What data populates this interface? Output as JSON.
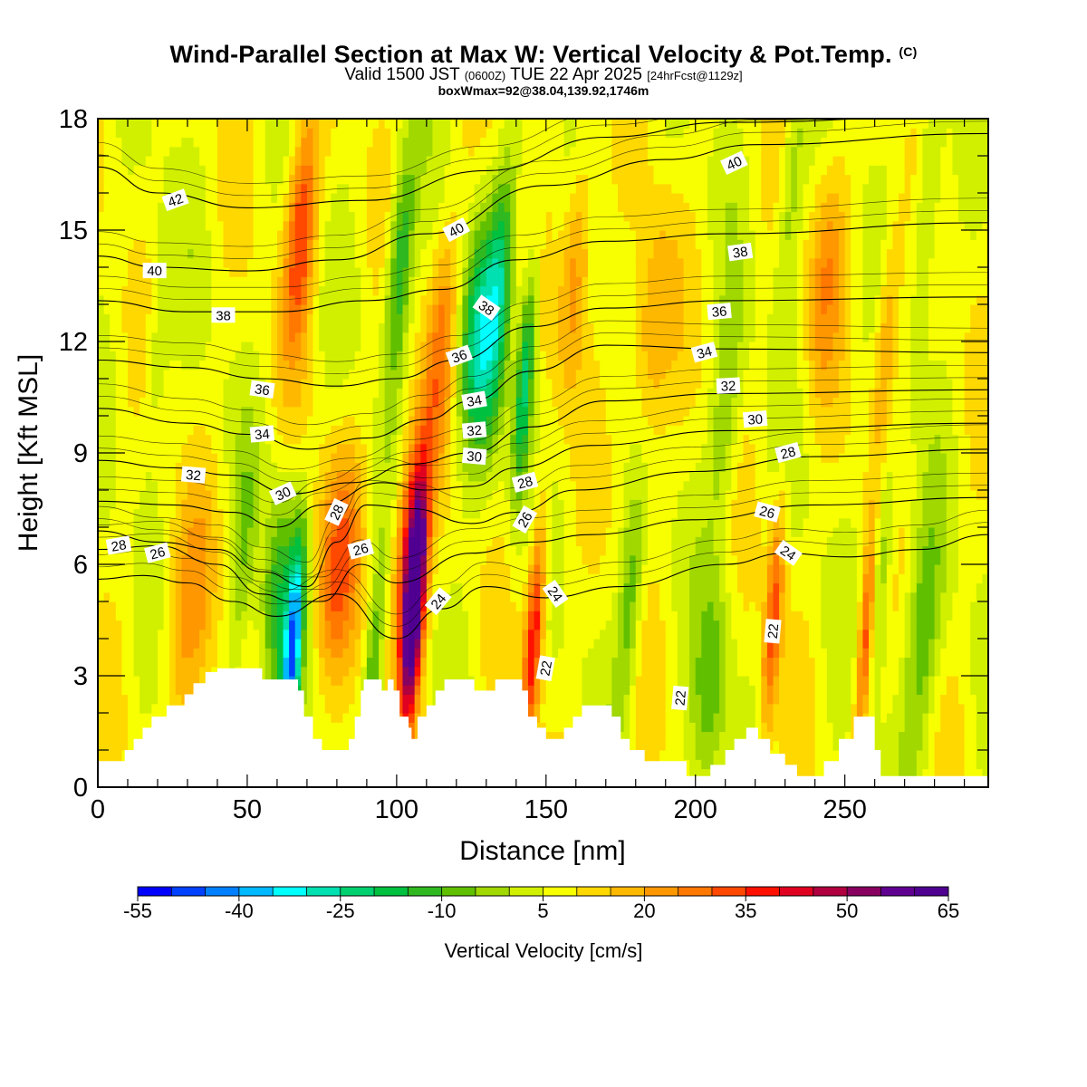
{
  "title": {
    "main": "Wind-Parallel Section at Max W: Vertical Velocity & Pot.Temp.",
    "unit_mark": "(C)",
    "valid_prefix": "Valid 1500 JST",
    "valid_utc": "(0600Z)",
    "valid_suffix": "TUE 22 Apr 2025",
    "forecast": "[24hrFcst@1129z]",
    "box_info": "boxWmax=92@38.04,139.92,1746m"
  },
  "chart_data": {
    "type": "heatmap",
    "xlabel": "Distance [nm]",
    "ylabel": "Height [Kft MSL]",
    "xlim": [
      0,
      298
    ],
    "ylim": [
      0,
      18
    ],
    "x_ticks": [
      0,
      50,
      100,
      150,
      200,
      250
    ],
    "y_ticks": [
      0,
      3,
      6,
      9,
      12,
      15,
      18
    ],
    "colorbar": {
      "title": "Vertical Velocity [cm/s]",
      "min": -55,
      "max": 65,
      "step": 5,
      "tick_labels": [
        "-55",
        "-40",
        "-25",
        "-10",
        "5",
        "20",
        "35",
        "50",
        "65"
      ],
      "colors": [
        "#0000ff",
        "#0040ff",
        "#0080ff",
        "#00b8ff",
        "#00ffff",
        "#00e0b0",
        "#00d070",
        "#00c040",
        "#30b820",
        "#60c000",
        "#a0d800",
        "#d0f000",
        "#f8ff00",
        "#ffd800",
        "#ffb800",
        "#ff9800",
        "#ff7800",
        "#ff4800",
        "#ff1000",
        "#e00020",
        "#b00040",
        "#880060",
        "#600090",
        "#500090"
      ]
    },
    "w_field": {
      "background_w": 7,
      "features": [
        {
          "x": 106,
          "w": 60,
          "z_peak": 5,
          "width_nm": 3.5
        },
        {
          "x": 104,
          "w": 30,
          "z_peak": 6.5,
          "width_nm": 5
        },
        {
          "x": 146,
          "w": 35,
          "z_peak": 4.2,
          "width_nm": 3
        },
        {
          "x": 257,
          "w": 30,
          "z_peak": 4,
          "width_nm": 2.5
        },
        {
          "x": 226,
          "w": 25,
          "z_peak": 4.5,
          "width_nm": 3
        },
        {
          "x": 80,
          "w": 22,
          "z_peak": 6,
          "width_nm": 7
        },
        {
          "x": 68,
          "w": 28,
          "z_peak": 15,
          "width_nm": 5
        },
        {
          "x": 30,
          "w": 14,
          "z_peak": 4.5,
          "width_nm": 8
        },
        {
          "x": 115,
          "w": 18,
          "z_peak": 12,
          "width_nm": 5
        },
        {
          "x": 160,
          "w": 18,
          "z_peak": 14,
          "width_nm": 5
        },
        {
          "x": 185,
          "w": 15,
          "z_peak": 12,
          "width_nm": 7
        },
        {
          "x": 244,
          "w": 15,
          "z_peak": 14,
          "width_nm": 6
        },
        {
          "x": 264,
          "w": 16,
          "z_peak": 12,
          "width_nm": 4
        },
        {
          "x": 65,
          "w": -48,
          "z_peak": 3.5,
          "width_nm": 3
        },
        {
          "x": 60,
          "w": -20,
          "z_peak": 5,
          "width_nm": 5
        },
        {
          "x": 101,
          "w": -25,
          "z_peak": 14,
          "width_nm": 4
        },
        {
          "x": 128,
          "w": -30,
          "z_peak": 12,
          "width_nm": 7
        },
        {
          "x": 143,
          "w": -30,
          "z_peak": 11,
          "width_nm": 3
        },
        {
          "x": 135,
          "w": -18,
          "z_peak": 14,
          "width_nm": 4
        },
        {
          "x": 92,
          "w": -18,
          "z_peak": 3,
          "width_nm": 3
        },
        {
          "x": 178,
          "w": -16,
          "z_peak": 5,
          "width_nm": 4
        },
        {
          "x": 205,
          "w": -14,
          "z_peak": 2.5,
          "width_nm": 6
        },
        {
          "x": 210,
          "w": -12,
          "z_peak": 10,
          "width_nm": 5
        },
        {
          "x": 262,
          "w": -16,
          "z_peak": 6,
          "width_nm": 4
        },
        {
          "x": 276,
          "w": -16,
          "z_peak": 4,
          "width_nm": 6
        },
        {
          "x": 278,
          "w": -14,
          "z_peak": 16,
          "width_nm": 4
        },
        {
          "x": 232,
          "w": -12,
          "z_peak": 16,
          "width_nm": 4
        },
        {
          "x": 20,
          "w": -8,
          "z_peak": 12,
          "width_nm": 4
        },
        {
          "x": 48,
          "w": -10,
          "z_peak": 6,
          "width_nm": 4
        }
      ]
    },
    "terrain_kft": [
      [
        0,
        0.7
      ],
      [
        6,
        0.7
      ],
      [
        9,
        1.0
      ],
      [
        12,
        1.3
      ],
      [
        15,
        1.6
      ],
      [
        18,
        1.9
      ],
      [
        23,
        2.2
      ],
      [
        29,
        2.5
      ],
      [
        32,
        2.8
      ],
      [
        36,
        3.1
      ],
      [
        40,
        3.2
      ],
      [
        52,
        3.2
      ],
      [
        55,
        2.9
      ],
      [
        65,
        2.9
      ],
      [
        67,
        2.6
      ],
      [
        69,
        1.9
      ],
      [
        72,
        1.3
      ],
      [
        75,
        1.0
      ],
      [
        81,
        1.0
      ],
      [
        84,
        1.3
      ],
      [
        86,
        1.9
      ],
      [
        88,
        2.6
      ],
      [
        89,
        2.9
      ],
      [
        94,
        2.9
      ],
      [
        95,
        2.6
      ],
      [
        97,
        2.9
      ],
      [
        99,
        2.6
      ],
      [
        101,
        1.9
      ],
      [
        104,
        1.6
      ],
      [
        105,
        1.3
      ],
      [
        107,
        1.9
      ],
      [
        110,
        2.2
      ],
      [
        113,
        2.6
      ],
      [
        116,
        2.9
      ],
      [
        124,
        2.9
      ],
      [
        126,
        2.6
      ],
      [
        131,
        2.6
      ],
      [
        133,
        2.9
      ],
      [
        140,
        2.9
      ],
      [
        142,
        2.6
      ],
      [
        144,
        1.9
      ],
      [
        147,
        1.6
      ],
      [
        150,
        1.3
      ],
      [
        153,
        1.3
      ],
      [
        156,
        1.6
      ],
      [
        159,
        1.9
      ],
      [
        162,
        2.2
      ],
      [
        170,
        2.2
      ],
      [
        172,
        1.9
      ],
      [
        175,
        1.3
      ],
      [
        178,
        1.0
      ],
      [
        183,
        0.7
      ],
      [
        195,
        0.7
      ],
      [
        197,
        0.3
      ],
      [
        202,
        0.3
      ],
      [
        205,
        0.6
      ],
      [
        210,
        1.0
      ],
      [
        213,
        1.3
      ],
      [
        217,
        1.6
      ],
      [
        221,
        1.3
      ],
      [
        225,
        0.9
      ],
      [
        230,
        0.6
      ],
      [
        234,
        0.3
      ],
      [
        240,
        0.3
      ],
      [
        243,
        0.7
      ],
      [
        248,
        1.3
      ],
      [
        253,
        1.9
      ],
      [
        257,
        1.9
      ],
      [
        260,
        1.0
      ],
      [
        262,
        0.3
      ],
      [
        270,
        0.3
      ],
      [
        298,
        0.3
      ]
    ],
    "contours": [
      {
        "label": "42",
        "pts": [
          [
            0,
            16.7
          ],
          [
            20,
            16.0
          ],
          [
            50,
            15.6
          ],
          [
            90,
            15.8
          ],
          [
            130,
            16.6
          ],
          [
            170,
            17.5
          ],
          [
            210,
            17.9
          ],
          [
            298,
            18.1
          ]
        ]
      },
      {
        "label": "40",
        "pts": [
          [
            0,
            14.3
          ],
          [
            20,
            14.0
          ],
          [
            50,
            13.9
          ],
          [
            80,
            14.2
          ],
          [
            110,
            14.9
          ],
          [
            150,
            16.2
          ],
          [
            190,
            16.9
          ],
          [
            220,
            17.3
          ],
          [
            298,
            17.6
          ]
        ]
      },
      {
        "label": "38",
        "pts": [
          [
            0,
            13.1
          ],
          [
            30,
            12.8
          ],
          [
            60,
            12.8
          ],
          [
            90,
            13.1
          ],
          [
            115,
            13.4
          ],
          [
            140,
            14.2
          ],
          [
            170,
            14.7
          ],
          [
            210,
            14.9
          ],
          [
            298,
            15.2
          ]
        ]
      },
      {
        "label": "36",
        "pts": [
          [
            0,
            11.5
          ],
          [
            30,
            11.3
          ],
          [
            55,
            11.0
          ],
          [
            80,
            10.8
          ],
          [
            100,
            11.0
          ],
          [
            120,
            11.5
          ],
          [
            145,
            12.4
          ],
          [
            170,
            12.9
          ],
          [
            210,
            13.1
          ],
          [
            298,
            13.2
          ]
        ]
      },
      {
        "label": "34",
        "pts": [
          [
            0,
            10.2
          ],
          [
            30,
            9.8
          ],
          [
            50,
            9.5
          ],
          [
            70,
            9.1
          ],
          [
            90,
            9.4
          ],
          [
            110,
            9.9
          ],
          [
            125,
            10.4
          ],
          [
            145,
            11.2
          ],
          [
            170,
            11.9
          ],
          [
            210,
            11.8
          ],
          [
            298,
            11.7
          ]
        ]
      },
      {
        "label": "32",
        "pts": [
          [
            0,
            8.8
          ],
          [
            25,
            8.6
          ],
          [
            45,
            8.4
          ],
          [
            65,
            7.9
          ],
          [
            85,
            8.2
          ],
          [
            105,
            8.7
          ],
          [
            125,
            9.0
          ],
          [
            145,
            9.7
          ],
          [
            170,
            10.4
          ],
          [
            210,
            10.6
          ],
          [
            298,
            10.7
          ]
        ]
      },
      {
        "label": "30",
        "pts": [
          [
            0,
            7.7
          ],
          [
            25,
            7.6
          ],
          [
            45,
            7.4
          ],
          [
            60,
            7.0
          ],
          [
            75,
            7.6
          ],
          [
            95,
            8.2
          ],
          [
            110,
            8.0
          ],
          [
            125,
            8.1
          ],
          [
            140,
            8.6
          ],
          [
            165,
            9.2
          ],
          [
            210,
            9.6
          ],
          [
            298,
            9.8
          ]
        ]
      },
      {
        "label": "28",
        "pts": [
          [
            0,
            6.9
          ],
          [
            20,
            6.6
          ],
          [
            40,
            6.4
          ],
          [
            55,
            5.8
          ],
          [
            70,
            5.4
          ],
          [
            80,
            6.6
          ],
          [
            90,
            7.6
          ],
          [
            105,
            7.5
          ],
          [
            125,
            7.1
          ],
          [
            140,
            7.4
          ],
          [
            160,
            8.0
          ],
          [
            200,
            8.5
          ],
          [
            240,
            8.9
          ],
          [
            298,
            9.1
          ]
        ]
      },
      {
        "label": "26",
        "pts": [
          [
            0,
            6.4
          ],
          [
            20,
            6.5
          ],
          [
            40,
            6.0
          ],
          [
            55,
            5.2
          ],
          [
            65,
            5.0
          ],
          [
            75,
            5.0
          ],
          [
            88,
            6.0
          ],
          [
            100,
            5.5
          ],
          [
            125,
            6.3
          ],
          [
            145,
            6.6
          ],
          [
            165,
            6.8
          ],
          [
            200,
            7.2
          ],
          [
            240,
            7.6
          ],
          [
            298,
            7.8
          ]
        ]
      },
      {
        "label": "24",
        "pts": [
          [
            0,
            5.6
          ],
          [
            15,
            5.7
          ],
          [
            30,
            5.5
          ],
          [
            45,
            5.0
          ],
          [
            60,
            4.6
          ],
          [
            80,
            5.2
          ],
          [
            100,
            4.0
          ],
          [
            115,
            4.8
          ],
          [
            130,
            5.4
          ],
          [
            150,
            5.1
          ],
          [
            175,
            5.4
          ],
          [
            210,
            6.0
          ],
          [
            230,
            6.3
          ],
          [
            250,
            6.2
          ],
          [
            275,
            6.4
          ],
          [
            298,
            6.8
          ]
        ]
      }
    ],
    "contour_labels": [
      {
        "text": "42",
        "x": 26,
        "y": 15.8,
        "angle": -20
      },
      {
        "text": "40",
        "x": 19,
        "y": 13.9,
        "angle": 0
      },
      {
        "text": "38",
        "x": 42,
        "y": 12.7,
        "angle": 0
      },
      {
        "text": "36",
        "x": 55,
        "y": 10.7,
        "angle": 8
      },
      {
        "text": "34",
        "x": 55,
        "y": 9.5,
        "angle": -5
      },
      {
        "text": "32",
        "x": 32,
        "y": 8.4,
        "angle": 5
      },
      {
        "text": "30",
        "x": 62,
        "y": 7.9,
        "angle": -25
      },
      {
        "text": "28",
        "x": 7,
        "y": 6.5,
        "angle": -10
      },
      {
        "text": "26",
        "x": 20,
        "y": 6.3,
        "angle": -15
      },
      {
        "text": "28",
        "x": 80,
        "y": 7.4,
        "angle": -65
      },
      {
        "text": "26",
        "x": 88,
        "y": 6.4,
        "angle": -15
      },
      {
        "text": "24",
        "x": 114,
        "y": 5.0,
        "angle": -50
      },
      {
        "text": "40",
        "x": 120,
        "y": 15.0,
        "angle": -28
      },
      {
        "text": "38",
        "x": 130,
        "y": 12.9,
        "angle": 35
      },
      {
        "text": "36",
        "x": 121,
        "y": 11.6,
        "angle": -20
      },
      {
        "text": "34",
        "x": 126,
        "y": 10.4,
        "angle": -10
      },
      {
        "text": "32",
        "x": 126,
        "y": 9.6,
        "angle": -5
      },
      {
        "text": "30",
        "x": 126,
        "y": 8.9,
        "angle": 5
      },
      {
        "text": "28",
        "x": 143,
        "y": 8.2,
        "angle": -15
      },
      {
        "text": "26",
        "x": 143,
        "y": 7.2,
        "angle": -60
      },
      {
        "text": "24",
        "x": 153,
        "y": 5.2,
        "angle": 55
      },
      {
        "text": "22",
        "x": 150,
        "y": 3.2,
        "angle": -80
      },
      {
        "text": "40",
        "x": 213,
        "y": 16.8,
        "angle": -25
      },
      {
        "text": "38",
        "x": 215,
        "y": 14.4,
        "angle": -8
      },
      {
        "text": "36",
        "x": 208,
        "y": 12.8,
        "angle": -5
      },
      {
        "text": "34",
        "x": 203,
        "y": 11.7,
        "angle": -15
      },
      {
        "text": "32",
        "x": 211,
        "y": 10.8,
        "angle": -3
      },
      {
        "text": "30",
        "x": 220,
        "y": 9.9,
        "angle": -5
      },
      {
        "text": "28",
        "x": 231,
        "y": 9.0,
        "angle": -15
      },
      {
        "text": "26",
        "x": 224,
        "y": 7.4,
        "angle": 15
      },
      {
        "text": "24",
        "x": 231,
        "y": 6.3,
        "angle": 35
      },
      {
        "text": "22",
        "x": 226,
        "y": 4.2,
        "angle": -85
      },
      {
        "text": "22",
        "x": 195,
        "y": 2.4,
        "angle": -85
      }
    ]
  }
}
